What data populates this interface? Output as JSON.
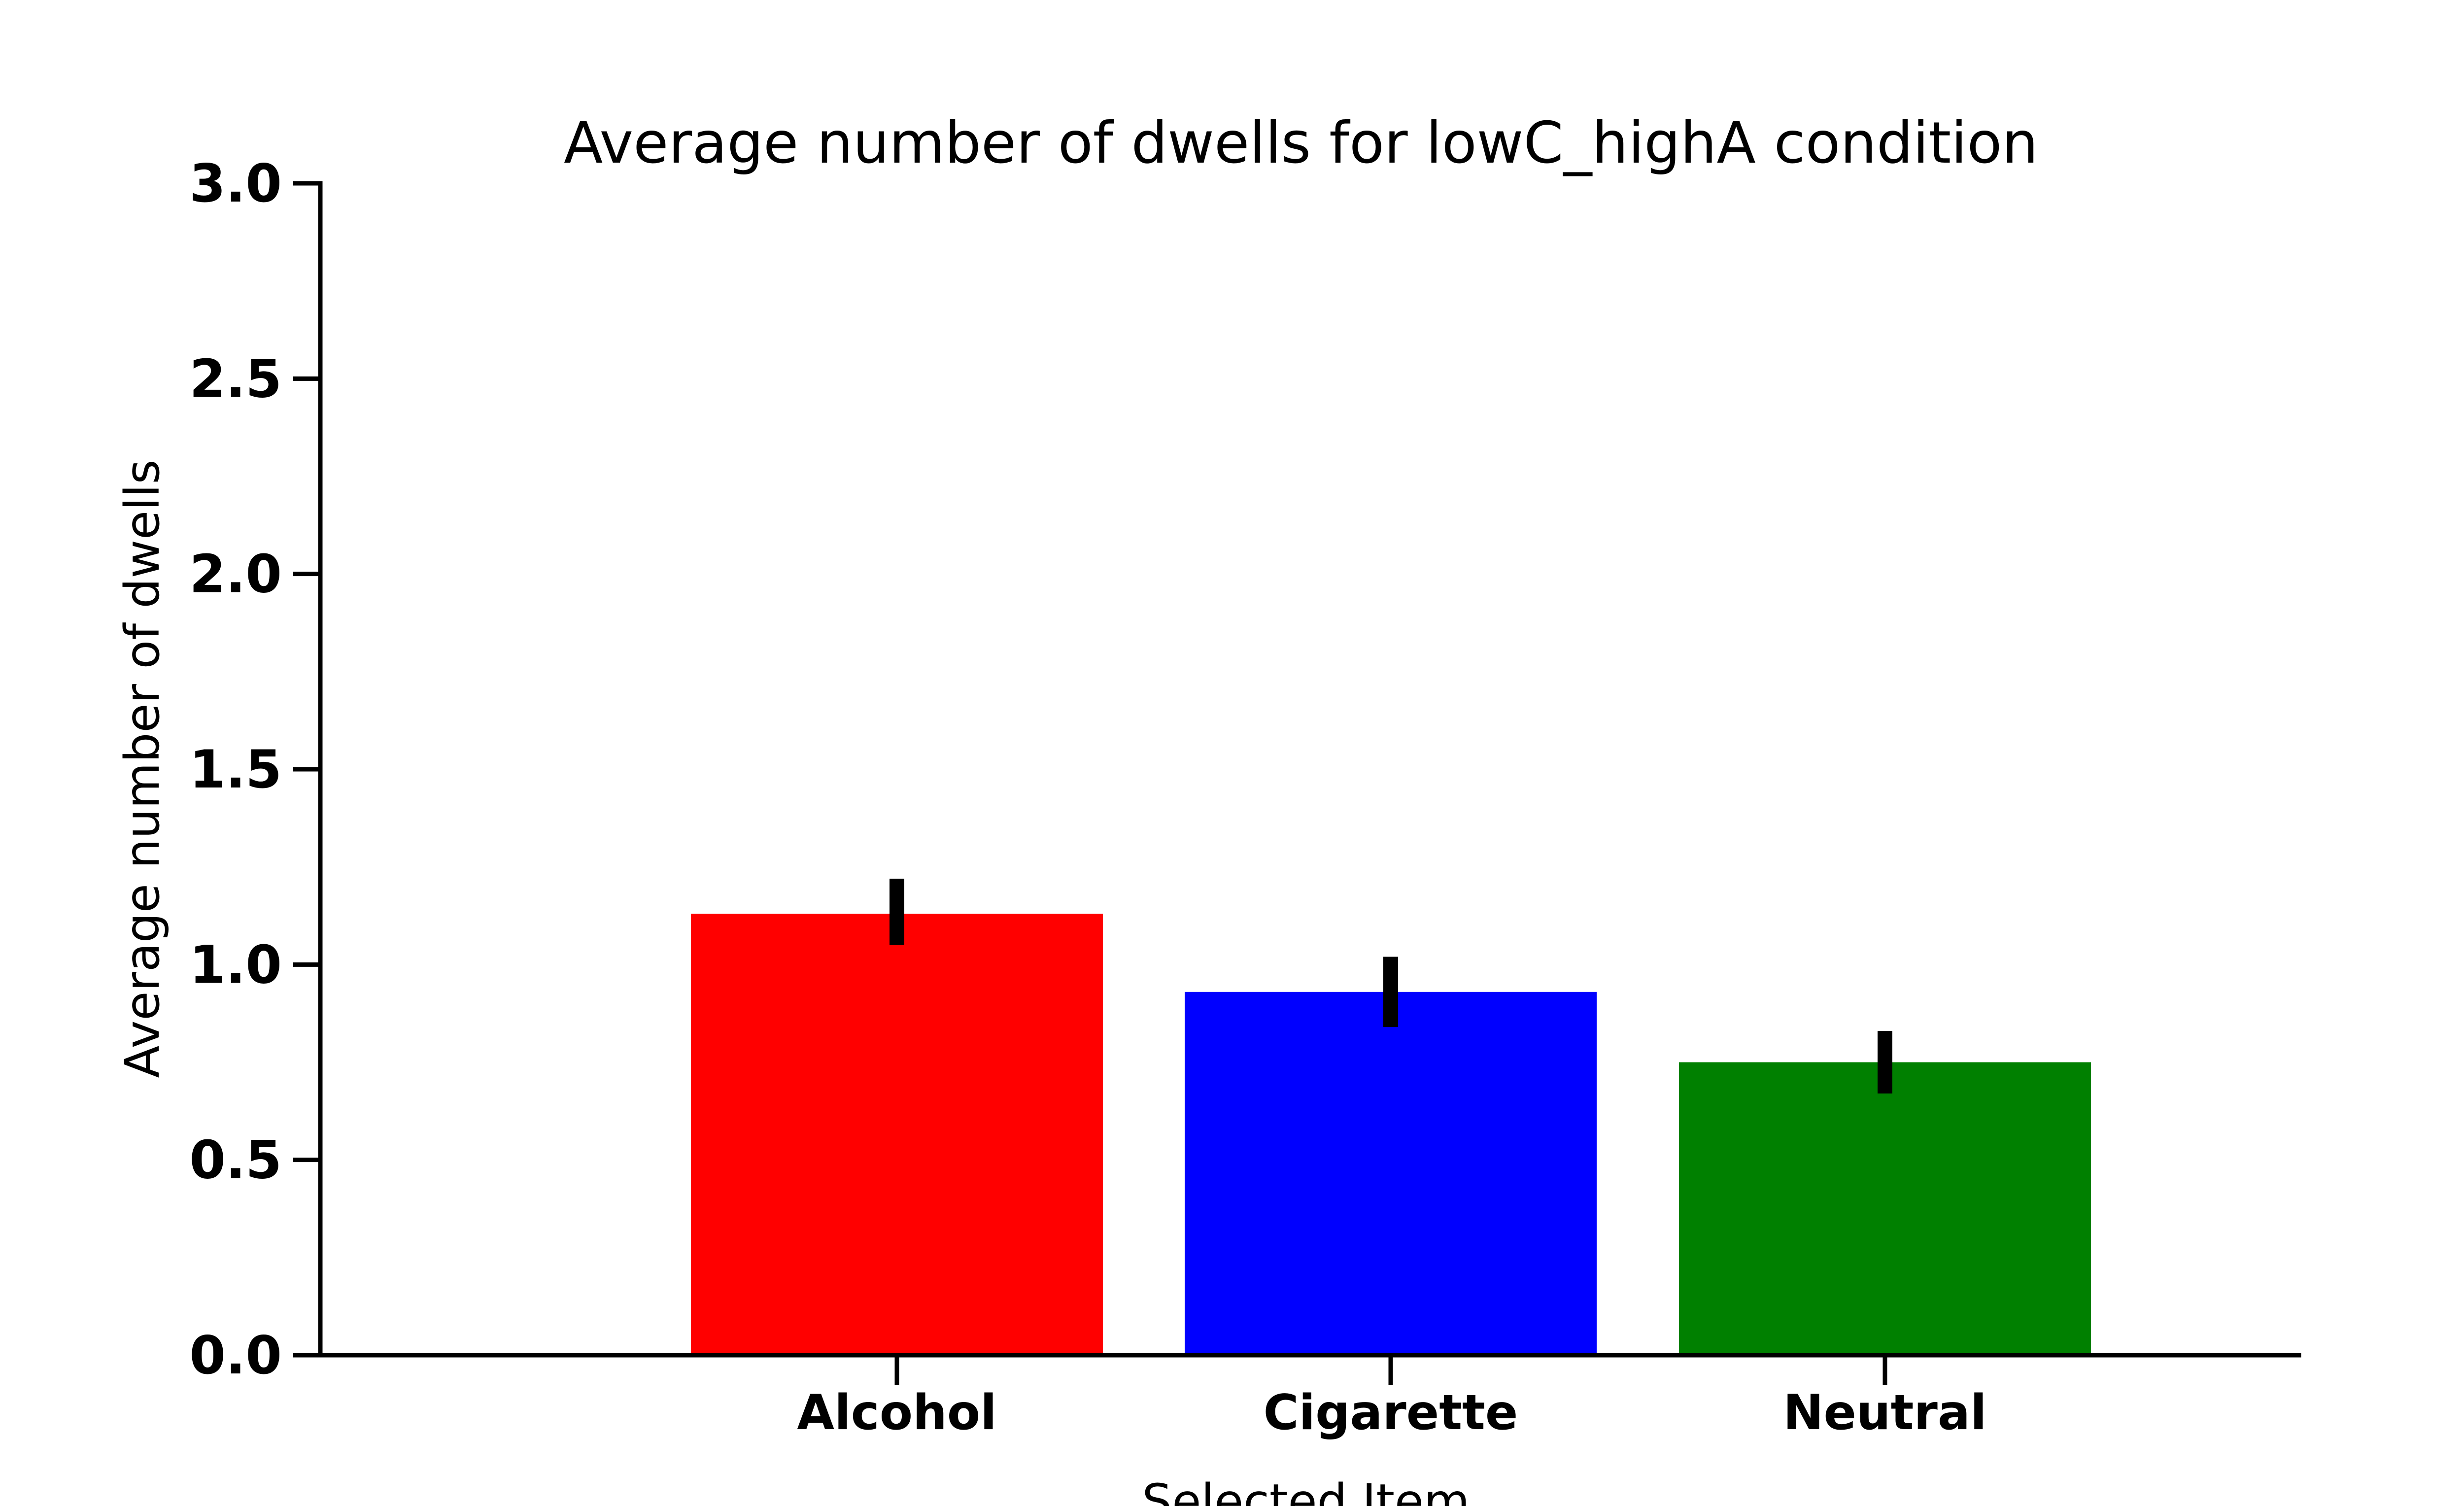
{
  "chart_data": {
    "type": "bar",
    "title": "Average number of dwells for lowC_highA condition",
    "xlabel": "Selected Item",
    "ylabel": "Average number of dwells",
    "categories": [
      "Alcohol",
      "Cigarette",
      "Neutral"
    ],
    "values": [
      1.13,
      0.93,
      0.75
    ],
    "error_bars": [
      {
        "low": 1.05,
        "high": 1.22
      },
      {
        "low": 0.84,
        "high": 1.02
      },
      {
        "low": 0.67,
        "high": 0.83
      }
    ],
    "colors": [
      "#ff0000",
      "#0000ff",
      "#008000"
    ],
    "yticks": [
      "0.0",
      "0.5",
      "1.0",
      "1.5",
      "2.0",
      "2.5",
      "3.0"
    ],
    "ylim": [
      0,
      3.0
    ],
    "grid": false,
    "legend": "none"
  }
}
